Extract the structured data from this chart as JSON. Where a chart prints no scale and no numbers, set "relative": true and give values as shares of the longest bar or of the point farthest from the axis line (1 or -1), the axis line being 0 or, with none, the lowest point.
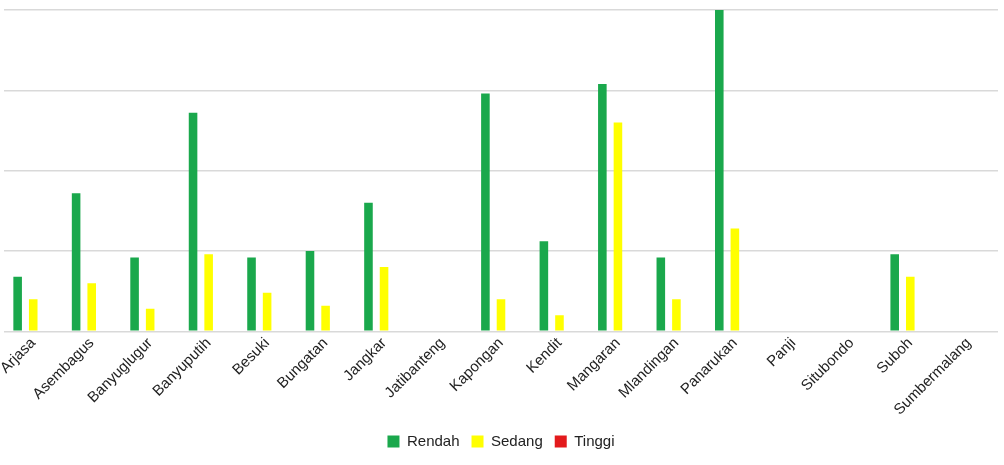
{
  "chart_data": {
    "type": "bar",
    "relative": true,
    "grid": "y",
    "legend": "bottom",
    "categories": [
      "Arjasa",
      "Asembagus",
      "Banyuglugur",
      "Banyuputih",
      "Besuki",
      "Bungatan",
      "Jangkar",
      "Jatibanteng",
      "Kapongan",
      "Kendit",
      "Mangaran",
      "Mlandingan",
      "Panarukan",
      "Panji",
      "Situbondo",
      "Suboh",
      "Sumbermalang"
    ],
    "series": [
      {
        "name": "Rendah",
        "color": "#1aa84c",
        "values": [
          0.17,
          0.43,
          0.23,
          0.68,
          0.23,
          0.25,
          0.4,
          0,
          0.74,
          0.28,
          0.77,
          0.23,
          1,
          0,
          0,
          0.24,
          0
        ]
      },
      {
        "name": "Sedang",
        "color": "#ffff00",
        "values": [
          0.1,
          0.15,
          0.07,
          0.24,
          0.12,
          0.08,
          0.2,
          0,
          0.1,
          0.05,
          0.65,
          0.1,
          0.32,
          0,
          0,
          0.17,
          0
        ]
      },
      {
        "name": "Tinggi",
        "color": "#e31a1c",
        "values": [
          0,
          0,
          0,
          0,
          0,
          0,
          0,
          0,
          0,
          0,
          0,
          0,
          0,
          0,
          0,
          0,
          0
        ]
      }
    ]
  }
}
